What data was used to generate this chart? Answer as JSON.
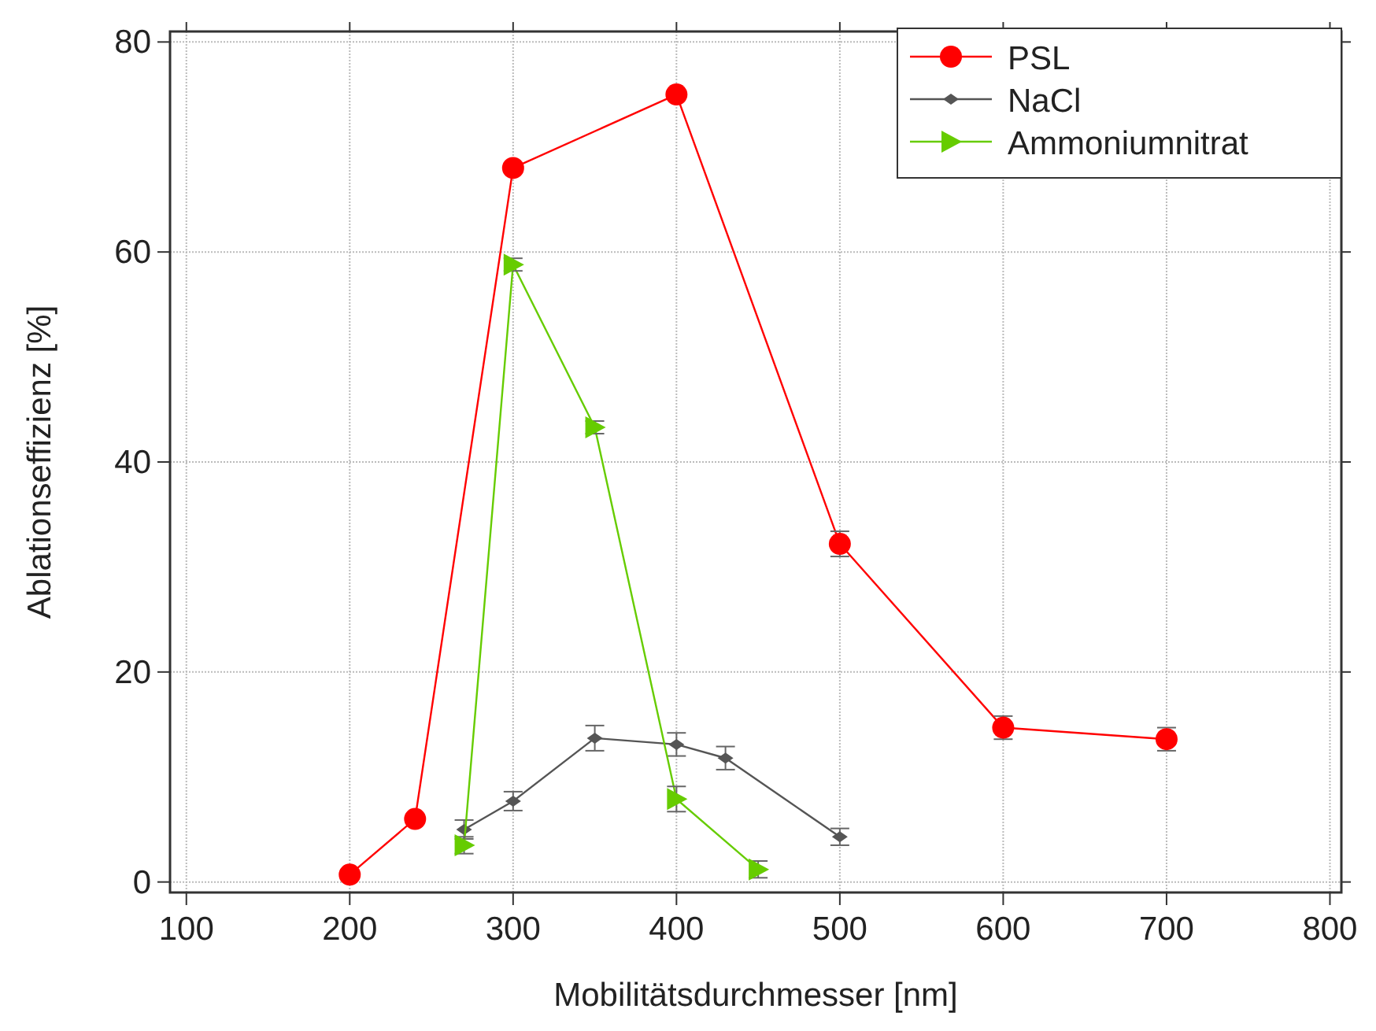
{
  "chart_data": {
    "type": "line",
    "xlabel": "Mobilitätsdurchmesser [nm]",
    "ylabel": "Ablationseffizienz [%]",
    "xlim": [
      90,
      807
    ],
    "xticks": [
      100,
      200,
      300,
      400,
      500,
      600,
      700,
      800
    ],
    "ylim": [
      -1,
      81
    ],
    "yticks": [
      0,
      20,
      40,
      60,
      80
    ],
    "grid": true,
    "legend": "top right",
    "line_style": "solid",
    "series": [
      {
        "name": "PSL",
        "color": "#ff0000",
        "marker": "circle",
        "x": [
          200,
          240,
          300,
          400,
          500,
          600,
          700
        ],
        "values": [
          0.7,
          6,
          68,
          75,
          32.2,
          14.7,
          13.6
        ],
        "errors": [
          null,
          null,
          null,
          null,
          1.2,
          1.1,
          1.1
        ]
      },
      {
        "name": "NaCl",
        "color": "#555555",
        "marker": "diamond",
        "x": [
          270,
          300,
          350,
          400,
          430,
          500
        ],
        "values": [
          5,
          7.7,
          13.7,
          13.1,
          11.8,
          4.3
        ],
        "errors": [
          0.9,
          0.9,
          1.2,
          1.1,
          1.1,
          0.8
        ]
      },
      {
        "name": "Ammoniumnitrat",
        "color": "#66cc00",
        "marker": "triangle",
        "x": [
          270,
          300,
          350,
          400,
          450
        ],
        "values": [
          3.5,
          58.8,
          43.3,
          7.9,
          1.2
        ],
        "errors": [
          0.8,
          0.6,
          0.6,
          1.2,
          0.8
        ]
      }
    ]
  }
}
